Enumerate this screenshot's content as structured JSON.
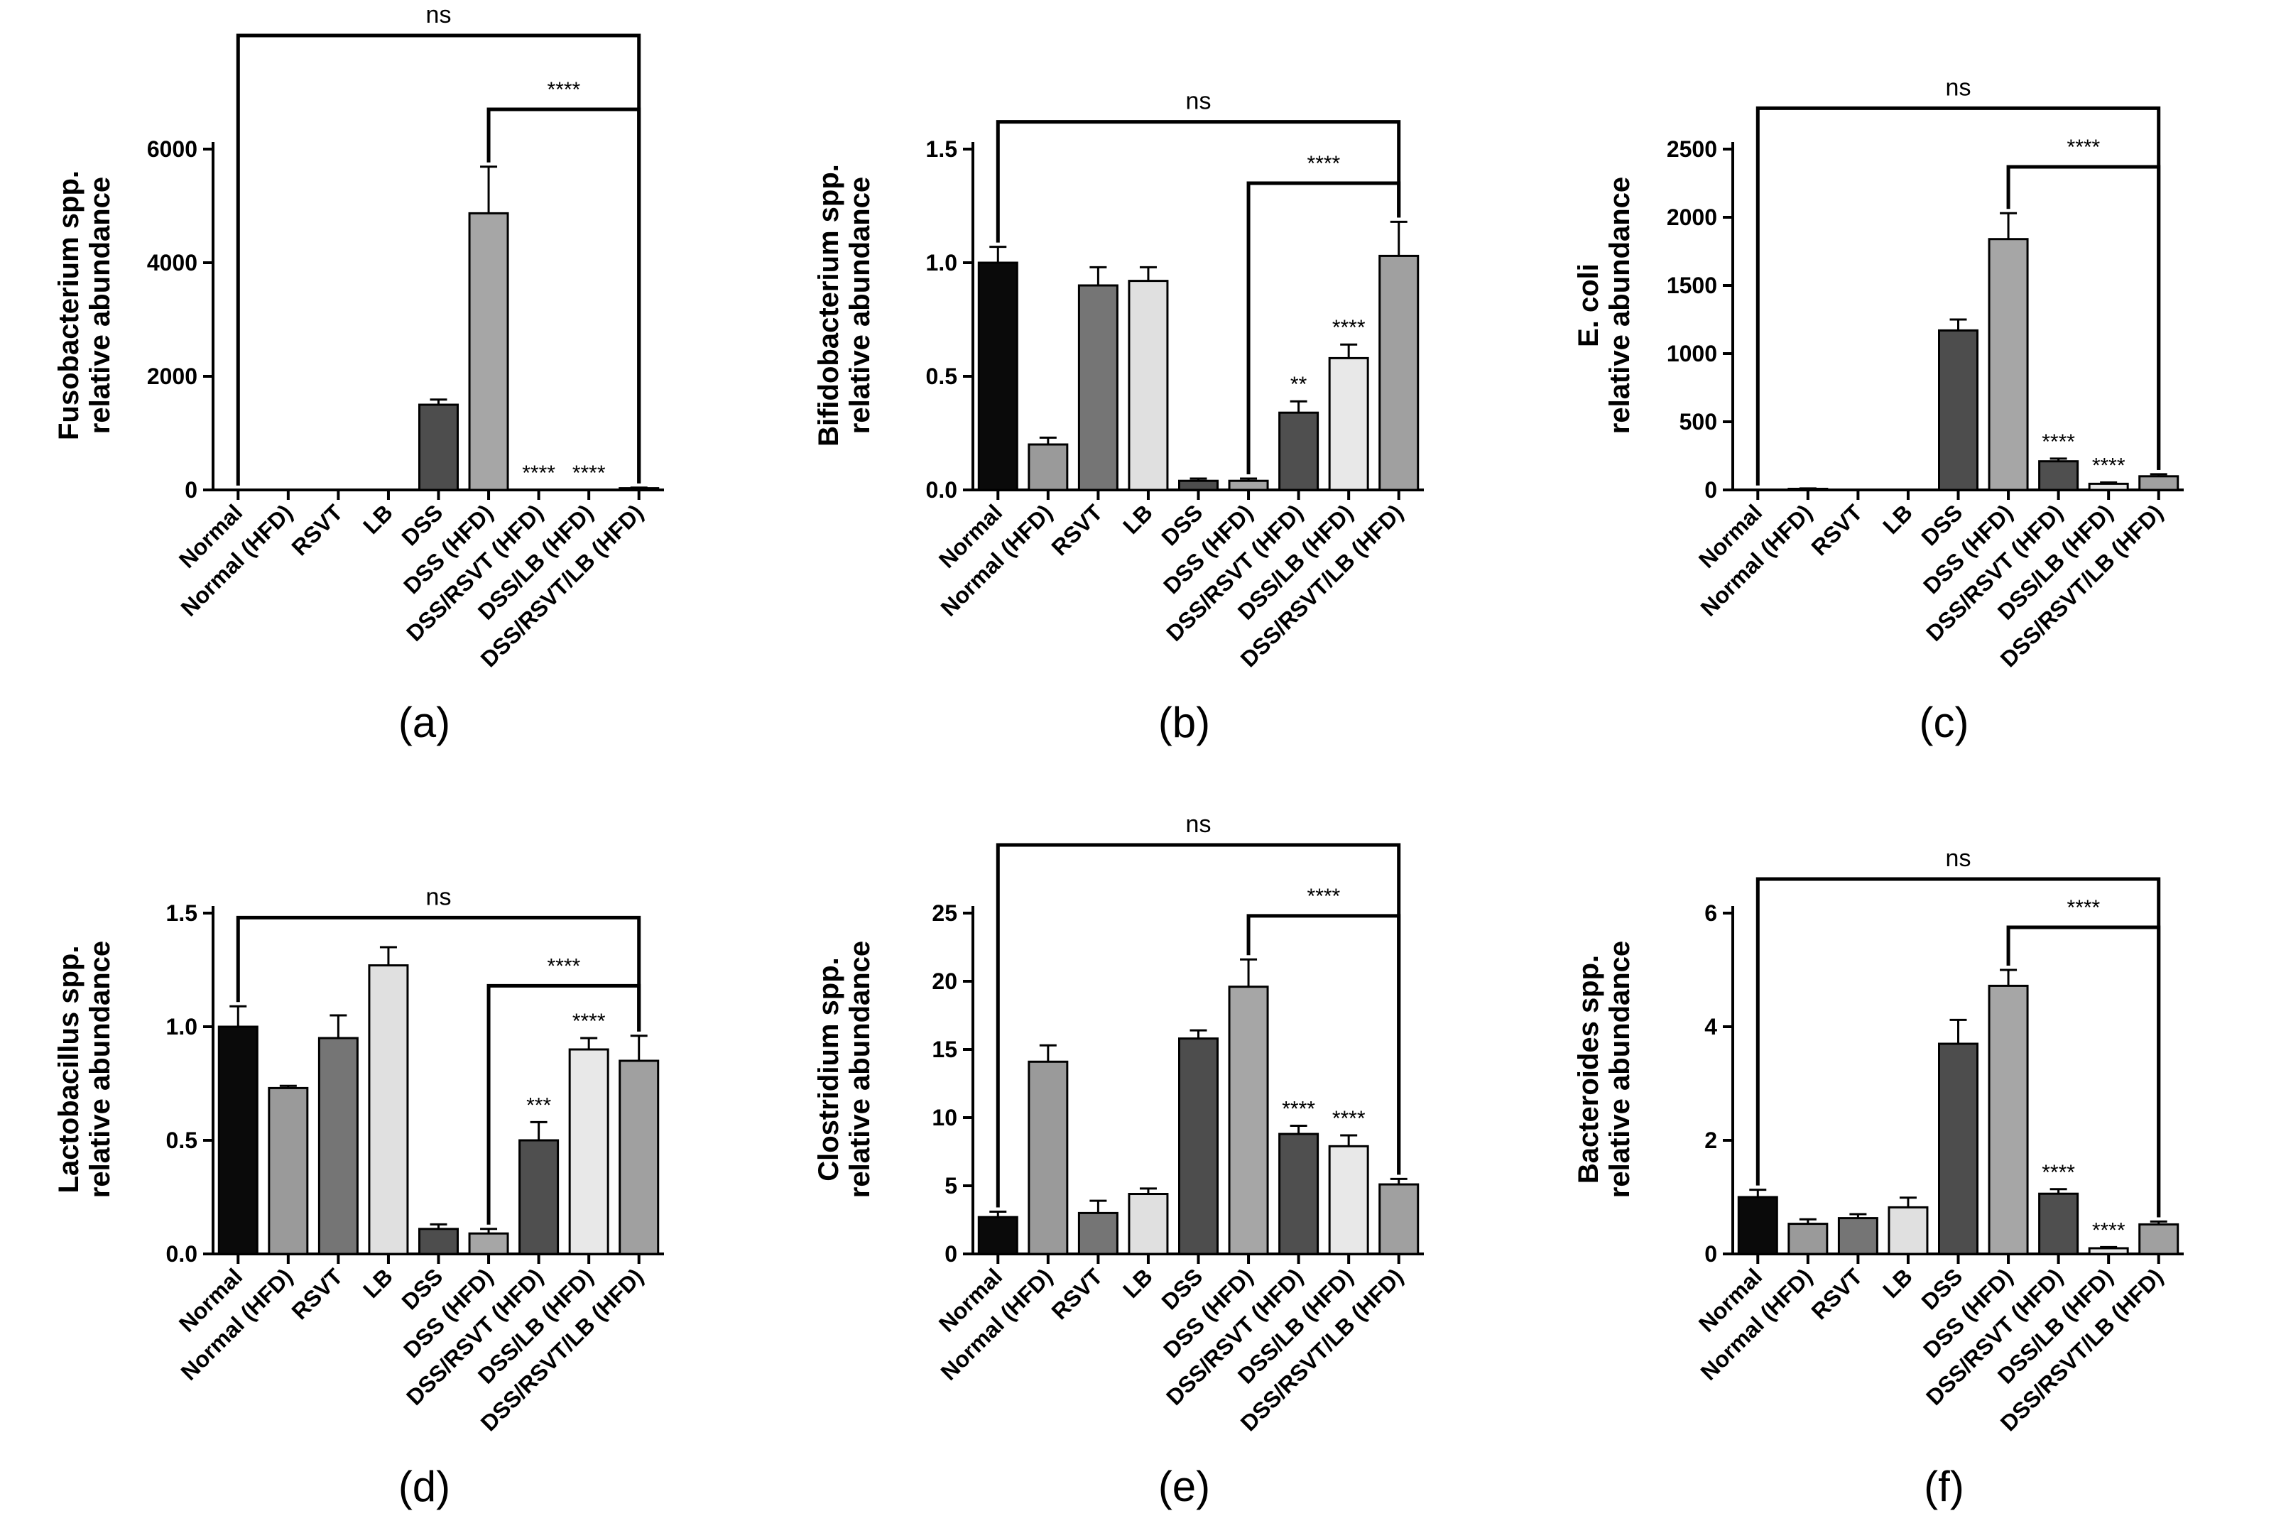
{
  "colors": {
    "Normal": "#0a0a0a",
    "Normal (HFD)": "#9a9a9a",
    "RSVT": "#757575",
    "LB": "#e0e0e0",
    "DSS": "#4d4d4d",
    "DSS (HFD)": "#a6a6a6",
    "DSS/RSVT (HFD)": "#4f4f4f",
    "DSS/LB (HFD)": "#e8e8e8",
    "DSS/RSVT/LB (HFD)": "#a0a0a0"
  },
  "chart_data": [
    {
      "panel_label": "(a)",
      "type": "bar",
      "ylabel_lines": [
        "Fusobacterium spp.",
        "relative abundance"
      ],
      "categories": [
        "Normal",
        "Normal (HFD)",
        "RSVT",
        "LB",
        "DSS",
        "DSS (HFD)",
        "DSS/RSVT (HFD)",
        "DSS/LB (HFD)",
        "DSS/RSVT/LB (HFD)"
      ],
      "values": [
        1,
        1,
        1,
        1,
        1500,
        4870,
        2,
        2,
        30
      ],
      "errors": [
        0,
        0,
        0,
        0,
        90,
        820,
        0,
        0,
        10
      ],
      "ylim": [
        0,
        6000
      ],
      "yticks": [
        0,
        2000,
        4000,
        6000
      ],
      "ytick_labels": [
        "0",
        "2000",
        "4000",
        "6000"
      ],
      "annotations": [
        {
          "index": 6,
          "text": "****"
        },
        {
          "index": 7,
          "text": "****"
        }
      ],
      "brackets": [
        {
          "from": 0,
          "to": 8,
          "y": 8000,
          "text": "ns"
        },
        {
          "from": 5,
          "to": 8,
          "y": 6700,
          "text": "****"
        }
      ]
    },
    {
      "panel_label": "(b)",
      "type": "bar",
      "ylabel_lines": [
        "Bifidobacterium spp.",
        "relative abundance"
      ],
      "categories": [
        "Normal",
        "Normal (HFD)",
        "RSVT",
        "LB",
        "DSS",
        "DSS (HFD)",
        "DSS/RSVT (HFD)",
        "DSS/LB (HFD)",
        "DSS/RSVT/LB (HFD)"
      ],
      "values": [
        1.0,
        0.2,
        0.9,
        0.92,
        0.04,
        0.04,
        0.34,
        0.58,
        1.03
      ],
      "errors": [
        0.07,
        0.03,
        0.08,
        0.06,
        0.01,
        0.01,
        0.05,
        0.06,
        0.15
      ],
      "ylim": [
        0,
        1.5
      ],
      "yticks": [
        0,
        0.5,
        1.0,
        1.5
      ],
      "ytick_labels": [
        "0.0",
        "0.5",
        "1.0",
        "1.5"
      ],
      "annotations": [
        {
          "index": 6,
          "text": "**"
        },
        {
          "index": 7,
          "text": "****"
        }
      ],
      "brackets": [
        {
          "from": 0,
          "to": 8,
          "y": 1.62,
          "text": "ns"
        },
        {
          "from": 5,
          "to": 8,
          "y": 1.35,
          "text": "****"
        }
      ]
    },
    {
      "panel_label": "(c)",
      "type": "bar",
      "ylabel_lines": [
        "E. coli",
        "relative abundance"
      ],
      "categories": [
        "Normal",
        "Normal (HFD)",
        "RSVT",
        "LB",
        "DSS",
        "DSS (HFD)",
        "DSS/RSVT (HFD)",
        "DSS/LB (HFD)",
        "DSS/RSVT/LB (HFD)"
      ],
      "values": [
        1,
        8,
        1,
        1,
        1170,
        1840,
        210,
        45,
        100
      ],
      "errors": [
        0,
        3,
        0,
        0,
        80,
        190,
        20,
        10,
        15
      ],
      "ylim": [
        0,
        2500
      ],
      "yticks": [
        0,
        500,
        1000,
        1500,
        2000,
        2500
      ],
      "ytick_labels": [
        "0",
        "500",
        "1000",
        "1500",
        "2000",
        "2500"
      ],
      "annotations": [
        {
          "index": 6,
          "text": "****"
        },
        {
          "index": 7,
          "text": "****"
        }
      ],
      "brackets": [
        {
          "from": 0,
          "to": 8,
          "y": 2800,
          "text": "ns"
        },
        {
          "from": 5,
          "to": 8,
          "y": 2370,
          "text": "****"
        }
      ]
    },
    {
      "panel_label": "(d)",
      "type": "bar",
      "ylabel_lines": [
        "Lactobacillus spp.",
        "relative abundance"
      ],
      "categories": [
        "Normal",
        "Normal (HFD)",
        "RSVT",
        "LB",
        "DSS",
        "DSS (HFD)",
        "DSS/RSVT (HFD)",
        "DSS/LB (HFD)",
        "DSS/RSVT/LB (HFD)"
      ],
      "values": [
        1.0,
        0.73,
        0.95,
        1.27,
        0.11,
        0.09,
        0.5,
        0.9,
        0.85
      ],
      "errors": [
        0.09,
        0.01,
        0.1,
        0.08,
        0.02,
        0.02,
        0.08,
        0.05,
        0.11
      ],
      "ylim": [
        0,
        1.5
      ],
      "yticks": [
        0,
        0.5,
        1.0,
        1.5
      ],
      "ytick_labels": [
        "0.0",
        "0.5",
        "1.0",
        "1.5"
      ],
      "annotations": [
        {
          "index": 6,
          "text": "***"
        },
        {
          "index": 7,
          "text": "****"
        }
      ],
      "brackets": [
        {
          "from": 0,
          "to": 8,
          "y": 1.48,
          "text": "ns"
        },
        {
          "from": 5,
          "to": 8,
          "y": 1.18,
          "text": "****"
        }
      ]
    },
    {
      "panel_label": "(e)",
      "type": "bar",
      "ylabel_lines": [
        "Clostridium spp.",
        "relative abundance"
      ],
      "categories": [
        "Normal",
        "Normal (HFD)",
        "RSVT",
        "LB",
        "DSS",
        "DSS (HFD)",
        "DSS/RSVT (HFD)",
        "DSS/LB (HFD)",
        "DSS/RSVT/LB (HFD)"
      ],
      "values": [
        2.7,
        14.1,
        3.0,
        4.4,
        15.8,
        19.6,
        8.8,
        7.9,
        5.1
      ],
      "errors": [
        0.4,
        1.2,
        0.9,
        0.4,
        0.6,
        2.0,
        0.6,
        0.8,
        0.4
      ],
      "ylim": [
        0,
        25
      ],
      "yticks": [
        0,
        5,
        10,
        15,
        20,
        25
      ],
      "ytick_labels": [
        "0",
        "5",
        "10",
        "15",
        "20",
        "25"
      ],
      "annotations": [
        {
          "index": 6,
          "text": "****"
        },
        {
          "index": 7,
          "text": "****"
        }
      ],
      "brackets": [
        {
          "from": 0,
          "to": 8,
          "y": 30,
          "text": "ns"
        },
        {
          "from": 5,
          "to": 8,
          "y": 24.8,
          "text": "****"
        }
      ]
    },
    {
      "panel_label": "(f)",
      "type": "bar",
      "ylabel_lines": [
        "Bacteroides spp.",
        "relative abundance"
      ],
      "categories": [
        "Normal",
        "Normal (HFD)",
        "RSVT",
        "LB",
        "DSS",
        "DSS (HFD)",
        "DSS/RSVT (HFD)",
        "DSS/LB (HFD)",
        "DSS/RSVT/LB (HFD)"
      ],
      "values": [
        1.0,
        0.53,
        0.63,
        0.82,
        3.7,
        4.72,
        1.06,
        0.1,
        0.52
      ],
      "errors": [
        0.13,
        0.08,
        0.07,
        0.17,
        0.42,
        0.28,
        0.08,
        0.02,
        0.05
      ],
      "ylim": [
        0,
        6
      ],
      "yticks": [
        0,
        2,
        4,
        6
      ],
      "ytick_labels": [
        "0",
        "2",
        "4",
        "6"
      ],
      "annotations": [
        {
          "index": 6,
          "text": "****"
        },
        {
          "index": 7,
          "text": "****"
        }
      ],
      "brackets": [
        {
          "from": 0,
          "to": 8,
          "y": 6.6,
          "text": "ns"
        },
        {
          "from": 5,
          "to": 8,
          "y": 5.75,
          "text": "****"
        }
      ]
    }
  ]
}
